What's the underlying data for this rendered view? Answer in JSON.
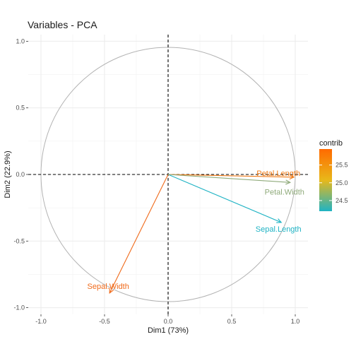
{
  "chart_data": {
    "type": "scatter",
    "title": "Variables - PCA",
    "xlabel": "Dim1 (73%)",
    "ylabel": "Dim2 (22.9%)",
    "xlim": [
      -1.1,
      1.1
    ],
    "ylim": [
      -1.05,
      1.05
    ],
    "x_ticks": [
      -1.0,
      -0.5,
      0.0,
      0.5,
      1.0
    ],
    "x_tick_labels": [
      "-1.0",
      "-0.5",
      "0.0",
      "0.5",
      "1.0"
    ],
    "y_ticks": [
      -1.0,
      -0.5,
      0.0,
      0.5,
      1.0
    ],
    "y_tick_labels": [
      "-1.0",
      "-0.5",
      "0.0",
      "0.5",
      "1.0"
    ],
    "grid": true,
    "circle_radius": 1.0,
    "variables": [
      {
        "name": "Sepal.Length",
        "x": 0.89,
        "y": -0.36,
        "contrib": 24.2,
        "color": "#1fb3c4"
      },
      {
        "name": "Sepal.Width",
        "x": -0.46,
        "y": -0.89,
        "contrib": 25.9,
        "color": "#f06a1a"
      },
      {
        "name": "Petal.Length",
        "x": 0.99,
        "y": -0.02,
        "contrib": 25.8,
        "color": "#f07b17"
      },
      {
        "name": "Petal.Width",
        "x": 0.96,
        "y": -0.06,
        "contrib": 24.9,
        "color": "#8faa7a"
      }
    ],
    "legend": {
      "title": "contrib",
      "position": "right",
      "min": 24.2,
      "max": 25.95,
      "ticks": [
        24.5,
        25.0,
        25.5
      ],
      "tick_labels": [
        "24.5",
        "25.0",
        "25.5"
      ],
      "gradient_colors": [
        "#1fb3c4",
        "#e8b81a",
        "#ff6a00"
      ]
    }
  }
}
